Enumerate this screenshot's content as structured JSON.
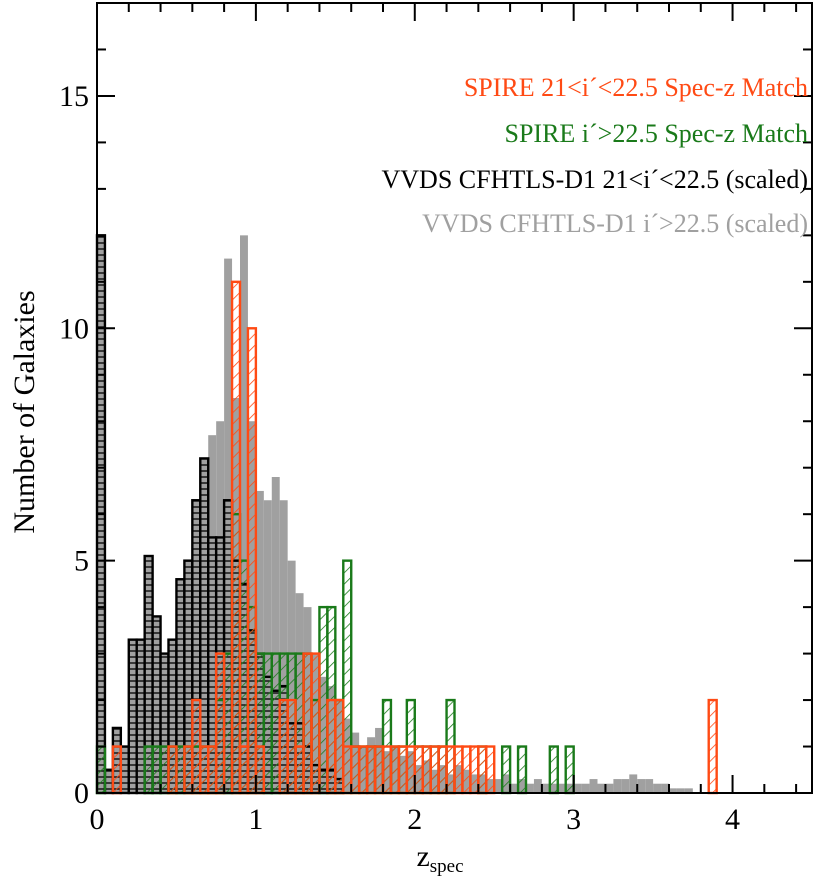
{
  "chart_data": {
    "type": "bar",
    "subtype": "overlaid histograms (step)",
    "xlabel": "z",
    "xlabel_subscript": "spec",
    "ylabel": "Number of Galaxies",
    "xlim": [
      0,
      4.5
    ],
    "ylim": [
      0,
      17
    ],
    "x_ticks": [
      0,
      1,
      2,
      3,
      4
    ],
    "y_ticks": [
      0,
      5,
      10,
      15
    ],
    "x_ticklabels": [
      "0",
      "1",
      "2",
      "3",
      "4"
    ],
    "y_ticklabels": [
      "0",
      "5",
      "10",
      "15"
    ],
    "grid": false,
    "legend_position": "top-right",
    "bin_width": 0.05,
    "series": [
      {
        "name": "VVDS CFHTLS-D1 i´>22.5 (scaled)",
        "color": "#a0a0a0",
        "style": "filled",
        "bins": [
          [
            0.65,
            6.3
          ],
          [
            0.7,
            7.7
          ],
          [
            0.75,
            8.0
          ],
          [
            0.8,
            11.5
          ],
          [
            0.85,
            8.5
          ],
          [
            0.9,
            12.0
          ],
          [
            0.95,
            8.0
          ],
          [
            1.0,
            6.5
          ],
          [
            1.05,
            6.3
          ],
          [
            1.1,
            6.8
          ],
          [
            1.15,
            6.3
          ],
          [
            1.2,
            5.0
          ],
          [
            1.25,
            4.3
          ],
          [
            1.3,
            4.0
          ],
          [
            1.35,
            3.0
          ],
          [
            1.4,
            2.5
          ],
          [
            1.45,
            2.3
          ],
          [
            1.5,
            2.0
          ],
          [
            1.55,
            1.6
          ],
          [
            1.6,
            1.3
          ],
          [
            1.65,
            1.0
          ],
          [
            1.7,
            1.2
          ],
          [
            1.75,
            1.4
          ],
          [
            1.8,
            0.9
          ],
          [
            1.85,
            1.0
          ],
          [
            1.9,
            0.8
          ],
          [
            1.95,
            0.9
          ],
          [
            2.0,
            0.6
          ],
          [
            2.05,
            0.7
          ],
          [
            2.1,
            0.5
          ],
          [
            2.15,
            0.6
          ],
          [
            2.2,
            0.4
          ],
          [
            2.25,
            0.6
          ],
          [
            2.3,
            0.5
          ],
          [
            2.35,
            0.4
          ],
          [
            2.4,
            0.4
          ],
          [
            2.45,
            0.3
          ],
          [
            2.5,
            0.3
          ],
          [
            2.55,
            0.4
          ],
          [
            2.6,
            0.2
          ],
          [
            2.65,
            0.3
          ],
          [
            2.7,
            0.2
          ],
          [
            2.75,
            0.3
          ],
          [
            2.8,
            0.2
          ],
          [
            2.85,
            0.2
          ],
          [
            2.9,
            0.2
          ],
          [
            2.95,
            0.2
          ],
          [
            3.0,
            0.2
          ],
          [
            3.05,
            0.2
          ],
          [
            3.1,
            0.3
          ],
          [
            3.15,
            0.2
          ],
          [
            3.2,
            0.2
          ],
          [
            3.25,
            0.3
          ],
          [
            3.3,
            0.3
          ],
          [
            3.35,
            0.4
          ],
          [
            3.4,
            0.3
          ],
          [
            3.45,
            0.3
          ],
          [
            3.5,
            0.2
          ],
          [
            3.55,
            0.2
          ],
          [
            3.6,
            0.1
          ],
          [
            3.65,
            0.1
          ],
          [
            3.7,
            0.1
          ]
        ]
      },
      {
        "name": "VVDS CFHTLS-D1 21<i´<22.5 (scaled)",
        "color": "#000000",
        "fill": "#a0a0a0",
        "style": "filled with horizontal lines",
        "bins": [
          [
            0.0,
            12.0
          ],
          [
            0.05,
            0.5
          ],
          [
            0.1,
            1.4
          ],
          [
            0.15,
            1.0
          ],
          [
            0.2,
            3.3
          ],
          [
            0.25,
            3.3
          ],
          [
            0.3,
            5.1
          ],
          [
            0.35,
            3.8
          ],
          [
            0.4,
            3.0
          ],
          [
            0.45,
            3.3
          ],
          [
            0.5,
            4.6
          ],
          [
            0.55,
            5.0
          ],
          [
            0.6,
            6.3
          ],
          [
            0.65,
            7.2
          ],
          [
            0.7,
            5.5
          ],
          [
            0.75,
            5.5
          ],
          [
            0.8,
            6.3
          ],
          [
            0.85,
            5.0
          ],
          [
            0.9,
            4.5
          ],
          [
            0.95,
            3.5
          ],
          [
            1.0,
            3.0
          ],
          [
            1.05,
            2.5
          ],
          [
            1.1,
            2.2
          ],
          [
            1.15,
            2.3
          ],
          [
            1.2,
            1.5
          ],
          [
            1.25,
            1.5
          ],
          [
            1.3,
            1.0
          ],
          [
            1.35,
            0.6
          ],
          [
            1.4,
            0.5
          ],
          [
            1.45,
            0.5
          ],
          [
            1.5,
            0.3
          ]
        ]
      },
      {
        "name": "SPIRE i´>22.5 Spec-z Match",
        "color": "#1a7a1a",
        "style": "hatched",
        "bins": [
          [
            0.0,
            1.0
          ],
          [
            0.3,
            1.0
          ],
          [
            0.35,
            1.0
          ],
          [
            0.4,
            1.0
          ],
          [
            0.45,
            1.0
          ],
          [
            0.5,
            1.0
          ],
          [
            0.55,
            1.0
          ],
          [
            0.6,
            1.0
          ],
          [
            0.65,
            1.0
          ],
          [
            0.7,
            1.0
          ],
          [
            0.75,
            2.0
          ],
          [
            0.8,
            3.0
          ],
          [
            0.85,
            6.0
          ],
          [
            0.9,
            5.0
          ],
          [
            0.95,
            4.0
          ],
          [
            1.0,
            3.0
          ],
          [
            1.05,
            3.0
          ],
          [
            1.1,
            3.0
          ],
          [
            1.15,
            3.0
          ],
          [
            1.2,
            3.0
          ],
          [
            1.25,
            3.0
          ],
          [
            1.3,
            3.0
          ],
          [
            1.35,
            2.0
          ],
          [
            1.4,
            4.0
          ],
          [
            1.45,
            4.0
          ],
          [
            1.5,
            2.0
          ],
          [
            1.55,
            5.0
          ],
          [
            1.6,
            1.0
          ],
          [
            1.65,
            1.0
          ],
          [
            1.7,
            1.0
          ],
          [
            1.75,
            1.0
          ],
          [
            1.8,
            2.0
          ],
          [
            1.85,
            1.0
          ],
          [
            1.9,
            1.0
          ],
          [
            1.95,
            2.0
          ],
          [
            2.0,
            1.0
          ],
          [
            2.05,
            1.0
          ],
          [
            2.1,
            1.0
          ],
          [
            2.15,
            1.0
          ],
          [
            2.2,
            2.0
          ],
          [
            2.4,
            1.0
          ],
          [
            2.55,
            1.0
          ],
          [
            2.65,
            1.0
          ],
          [
            2.85,
            1.0
          ],
          [
            2.95,
            1.0
          ]
        ]
      },
      {
        "name": "SPIRE 21<i´<22.5 Spec-z Match",
        "color": "#ff4a14",
        "style": "hatched",
        "bins": [
          [
            0.1,
            1.0
          ],
          [
            0.45,
            1.0
          ],
          [
            0.55,
            1.0
          ],
          [
            0.6,
            2.0
          ],
          [
            0.65,
            1.0
          ],
          [
            0.7,
            1.0
          ],
          [
            0.75,
            3.0
          ],
          [
            0.85,
            11.0
          ],
          [
            0.9,
            1.0
          ],
          [
            0.95,
            10.0
          ],
          [
            1.0,
            1.0
          ],
          [
            1.15,
            2.0
          ],
          [
            1.2,
            2.0
          ],
          [
            1.25,
            1.0
          ],
          [
            1.3,
            3.0
          ],
          [
            1.35,
            3.0
          ],
          [
            1.45,
            2.0
          ],
          [
            1.5,
            2.0
          ],
          [
            1.55,
            1.0
          ],
          [
            1.6,
            1.0
          ],
          [
            1.65,
            1.0
          ],
          [
            1.7,
            1.0
          ],
          [
            1.75,
            1.0
          ],
          [
            1.8,
            1.0
          ],
          [
            1.85,
            1.0
          ],
          [
            1.9,
            1.0
          ],
          [
            1.95,
            1.0
          ],
          [
            2.0,
            1.0
          ],
          [
            2.05,
            1.0
          ],
          [
            2.1,
            1.0
          ],
          [
            2.15,
            1.0
          ],
          [
            2.2,
            1.0
          ],
          [
            2.25,
            1.0
          ],
          [
            2.3,
            1.0
          ],
          [
            2.35,
            1.0
          ],
          [
            2.4,
            1.0
          ],
          [
            2.45,
            1.0
          ],
          [
            3.85,
            2.0
          ]
        ]
      }
    ],
    "legend": [
      {
        "label": "SPIRE 21<i´<22.5 Spec-z Match",
        "color": "#ff4a14"
      },
      {
        "label": "SPIRE i´>22.5 Spec-z Match",
        "color": "#1a7a1a"
      },
      {
        "label": "VVDS CFHTLS-D1 21<i´<22.5 (scaled)",
        "color": "#000000"
      },
      {
        "label": "VVDS CFHTLS-D1 i´>22.5 (scaled)",
        "color": "#a0a0a0"
      }
    ]
  }
}
